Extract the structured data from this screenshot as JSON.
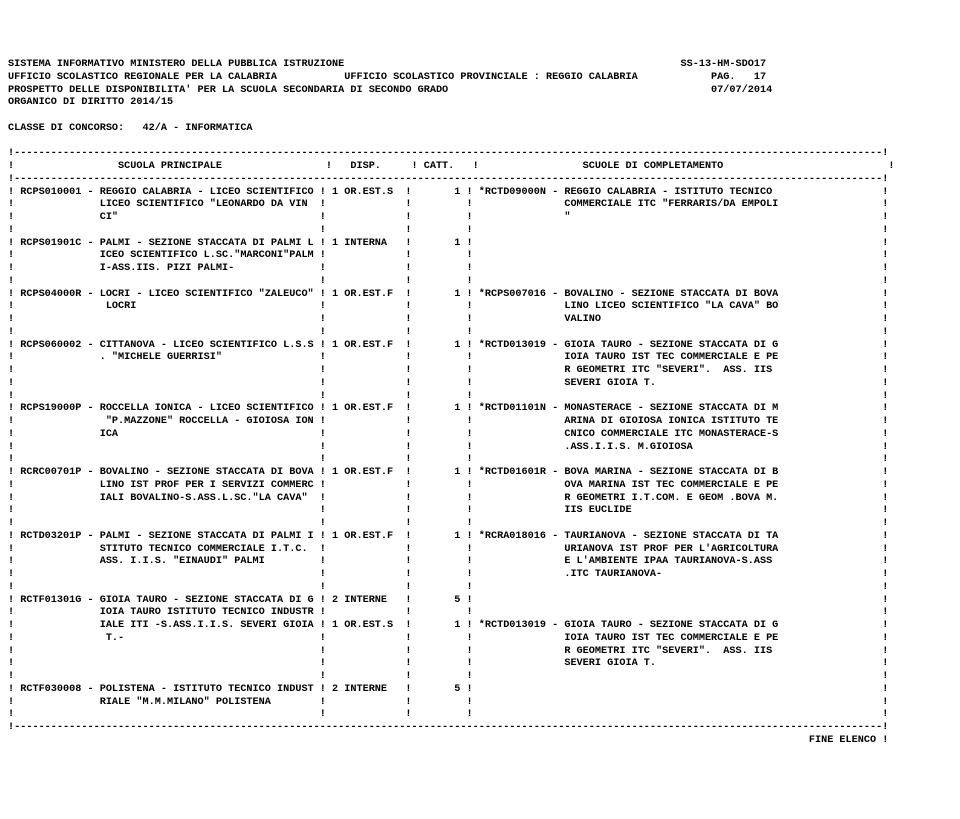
{
  "header": {
    "line1_left": "SISTEMA INFORMATIVO MINISTERO DELLA PUBBLICA ISTRUZIONE",
    "line1_right": "SS-13-HM-SDO17",
    "line2_left": "UFFICIO SCOLASTICO REGIONALE PER LA CALABRIA",
    "line2_mid": "UFFICIO SCOLASTICO PROVINCIALE : REGGIO CALABRIA",
    "line2_right": "PAG.   17",
    "line3_left": "PROSPETTO DELLE DISPONIBILITA' PER LA SCUOLA SECONDARIA DI SECONDO GRADO",
    "line3_right": "07/07/2014",
    "line4": "ORGANICO DI DIRITTO 2014/15"
  },
  "class_label": "CLASSE DI CONCORSO:   42/A - INFORMATICA",
  "columns": {
    "c1": "SCUOLA PRINCIPALE",
    "c2": "DISP.",
    "c3": "CATT.",
    "c4": "SCUOLE DI COMPLETAMENTO"
  },
  "rows": [
    {
      "code": "RCPS010001",
      "principal": [
        "REGGIO CALABRIA - LICEO SCIENTIFICO",
        "LICEO SCIENTIFICO \"LEONARDO DA VIN",
        "CI\""
      ],
      "disp": "1 OR.EST.S",
      "catt": "1",
      "compl": [
        "*RCTD09000N - REGGIO CALABRIA - ISTITUTO TECNICO",
        "              COMMERCIALE ITC \"FERRARIS/DA EMPOLI",
        "              \""
      ]
    },
    {
      "code": "RCPS01901C",
      "principal": [
        "PALMI - SEZIONE STACCATA DI PALMI L",
        "ICEO SCIENTIFICO L.SC.\"MARCONI\"PALM",
        "I-ASS.IIS. PIZI PALMI-"
      ],
      "disp": "1 INTERNA",
      "catt": "1",
      "compl": [
        "",
        "",
        ""
      ]
    },
    {
      "code": "RCPS04000R",
      "principal": [
        "LOCRI - LICEO SCIENTIFICO \"ZALEUCO\"",
        " LOCRI",
        ""
      ],
      "disp": "1 OR.EST.F",
      "catt": "1",
      "compl": [
        "*RCPS007016 - BOVALINO - SEZIONE STACCATA DI BOVA",
        "              LINO LICEO SCIENTIFICO \"LA CAVA\" BO",
        "              VALINO"
      ]
    },
    {
      "code": "RCPS060002",
      "principal": [
        "CITTANOVA - LICEO SCIENTIFICO L.S.S",
        ". \"MICHELE GUERRISI\"",
        "",
        ""
      ],
      "disp": "1 OR.EST.F",
      "catt": "1",
      "compl": [
        "*RCTD013019 - GIOIA TAURO - SEZIONE STACCATA DI G",
        "              IOIA TAURO IST TEC COMMERCIALE E PE",
        "              R GEOMETRI ITC \"SEVERI\".  ASS. IIS",
        "              SEVERI GIOIA T."
      ]
    },
    {
      "code": "RCPS19000P",
      "principal": [
        "ROCCELLA IONICA - LICEO SCIENTIFICO",
        " \"P.MAZZONE\" ROCCELLA - GIOIOSA ION",
        "ICA",
        ""
      ],
      "disp": "1 OR.EST.F",
      "catt": "1",
      "compl": [
        "*RCTD01101N - MONASTERACE - SEZIONE STACCATA DI M",
        "              ARINA DI GIOIOSA IONICA ISTITUTO TE",
        "              CNICO COMMERCIALE ITC MONASTERACE-S",
        "              .ASS.I.I.S. M.GIOIOSA"
      ]
    },
    {
      "code": "RCRC00701P",
      "principal": [
        "BOVALINO - SEZIONE STACCATA DI BOVA",
        "LINO IST PROF PER I SERVIZI COMMERC",
        "IALI BOVALINO-S.ASS.L.SC.\"LA CAVA\"",
        ""
      ],
      "disp": "1 OR.EST.F",
      "catt": "1",
      "compl": [
        "*RCTD01601R - BOVA MARINA - SEZIONE STACCATA DI B",
        "              OVA MARINA IST TEC COMMERCIALE E PE",
        "              R GEOMETRI I.T.COM. E GEOM .BOVA M.",
        "              IIS EUCLIDE"
      ]
    },
    {
      "code": "RCTD03201P",
      "principal": [
        "PALMI - SEZIONE STACCATA DI PALMI I",
        "STITUTO TECNICO COMMERCIALE I.T.C.",
        "ASS. I.I.S. \"EINAUDI\" PALMI",
        ""
      ],
      "disp": "1 OR.EST.F",
      "catt": "1",
      "compl": [
        "*RCRA018016 - TAURIANOVA - SEZIONE STACCATA DI TA",
        "              URIANOVA IST PROF PER L'AGRICOLTURA",
        "              E L'AMBIENTE IPAA TAURIANOVA-S.ASS",
        "              .ITC TAURIANOVA-"
      ]
    },
    {
      "code": "RCTF01301G",
      "principal": [
        "GIOIA TAURO - SEZIONE STACCATA DI G",
        "IOIA TAURO ISTITUTO TECNICO INDUSTR",
        "IALE ITI -S.ASS.I.I.S. SEVERI GIOIA",
        " T.-",
        ""
      ],
      "disp": [
        "2 INTERNE",
        "",
        "1 OR.EST.S",
        "",
        ""
      ],
      "catt": [
        "5",
        "",
        "1",
        "",
        ""
      ],
      "compl": [
        "",
        "",
        "*RCTD013019 - GIOIA TAURO - SEZIONE STACCATA DI G",
        "              IOIA TAURO IST TEC COMMERCIALE E PE",
        "              R GEOMETRI ITC \"SEVERI\".  ASS. IIS",
        "              SEVERI GIOIA T."
      ]
    },
    {
      "code": "RCTF030008",
      "principal": [
        "POLISTENA - ISTITUTO TECNICO INDUST",
        "RIALE \"M.M.MILANO\" POLISTENA"
      ],
      "disp": "2 INTERNE",
      "catt": "5",
      "compl": [
        "",
        ""
      ]
    }
  ],
  "footer": "FINE ELENCO"
}
